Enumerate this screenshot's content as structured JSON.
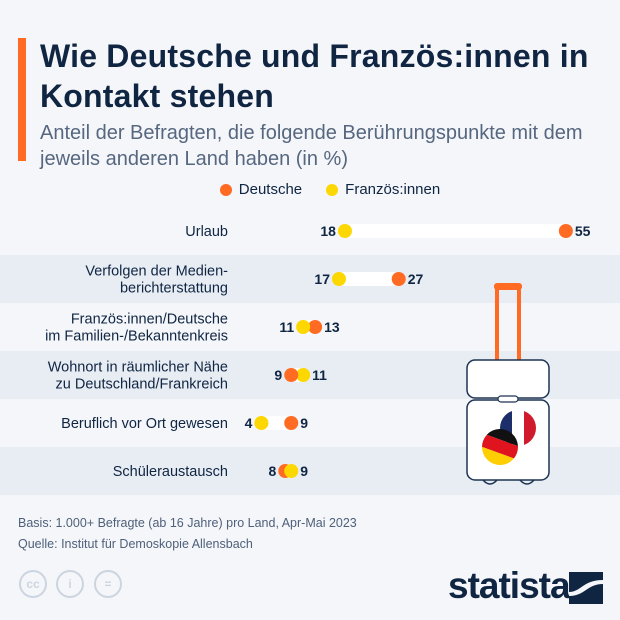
{
  "header": {
    "title": "Wie Deutsche und Französ:innen in Kontakt stehen",
    "subtitle": "Anteil der Befragten, die folgende Berührungspunkte mit dem jeweils anderen Land haben (in %)"
  },
  "chart_data": {
    "type": "dumbbell",
    "title": "Wie Deutsche und Französ:innen in Kontakt stehen",
    "subtitle": "Anteil der Befragten, die folgende Berührungspunkte mit dem jeweils anderen Land haben (in %)",
    "legend_position": "top-center",
    "grid": false,
    "categories": [
      "Urlaub",
      "Verfolgen der Medien-\nberichterstattung",
      "Französ:innen/Deutsche\nim Familien-/Bekanntenkreis",
      "Wohnort in räumlicher Nähe\nzu Deutschland/Frankreich",
      "Beruflich vor Ort gewesen",
      "Schüleraustausch"
    ],
    "series": [
      {
        "name": "Deutsche",
        "color": "#ff6b22",
        "values": [
          55,
          27,
          13,
          9,
          9,
          8
        ]
      },
      {
        "name": "Französ:innen",
        "color": "#fdd700",
        "values": [
          18,
          17,
          11,
          11,
          4,
          9
        ]
      }
    ]
  },
  "colors": {
    "accent": "#ff6b22",
    "deutsche": "#ff6b22",
    "franzoesinnen": "#fdd700",
    "stripe": "#e8edf4"
  },
  "footer": {
    "basis": "Basis: 1.000+ Befragte (ab 16 Jahre) pro Land, Apr-Mai 2023",
    "source": "Quelle: Institut für Demoskopie Allensbach",
    "logo": "statista",
    "license_icons": [
      "cc-icon",
      "by-icon",
      "nd-icon"
    ]
  }
}
